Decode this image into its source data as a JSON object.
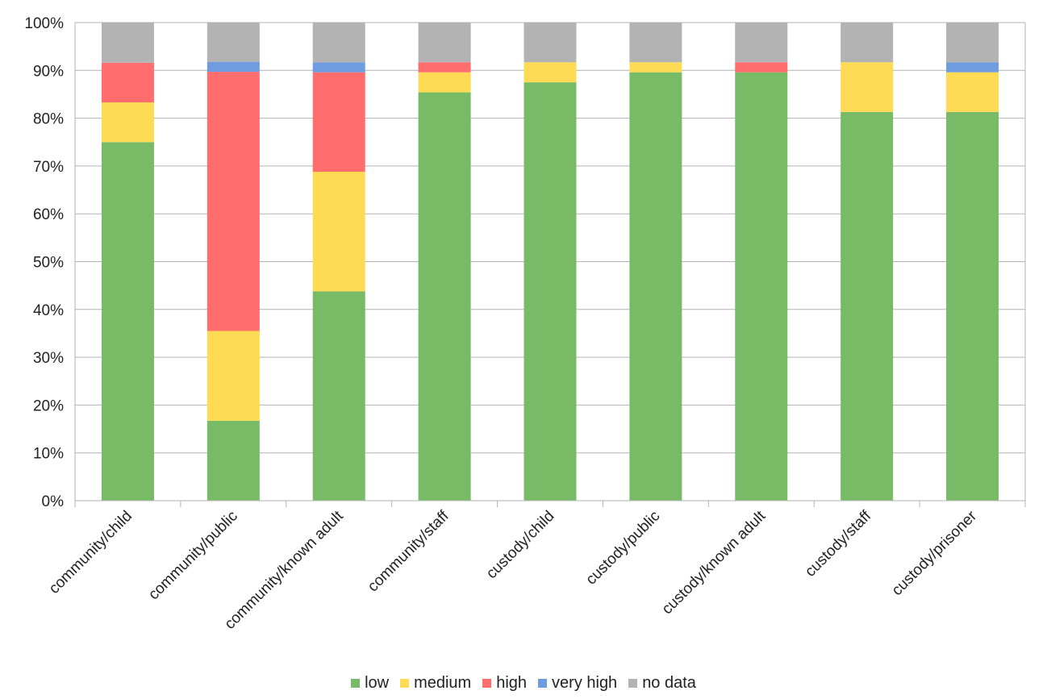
{
  "chart_data": {
    "type": "bar",
    "stacked": true,
    "categories": [
      "community/child",
      "community/public",
      "community/known adult",
      "community/staff",
      "custody/child",
      "custody/public",
      "custody/known adult",
      "custody/staff",
      "custody/prisoner"
    ],
    "series": [
      {
        "name": "low",
        "color": "#77bb66",
        "values": [
          75,
          16.7,
          43.8,
          85.4,
          87.5,
          89.6,
          89.6,
          81.3,
          81.3
        ]
      },
      {
        "name": "medium",
        "color": "#ffdb55",
        "values": [
          8.3,
          18.8,
          25,
          4.2,
          4.2,
          2.1,
          0,
          10.4,
          8.3
        ]
      },
      {
        "name": "high",
        "color": "#ff6e6c",
        "values": [
          8.3,
          54.2,
          20.8,
          2.1,
          0,
          0,
          2.1,
          0,
          0
        ]
      },
      {
        "name": "very high",
        "color": "#6f9be0",
        "values": [
          0,
          2.1,
          2.1,
          0,
          0,
          0,
          0,
          0,
          2.1
        ]
      },
      {
        "name": "no data",
        "color": "#b3b3b3",
        "values": [
          8.4,
          8.2,
          8.3,
          8.3,
          8.3,
          8.3,
          8.3,
          8.3,
          8.3
        ]
      }
    ],
    "yticks": [
      "0%",
      "10%",
      "20%",
      "30%",
      "40%",
      "50%",
      "60%",
      "70%",
      "80%",
      "90%",
      "100%"
    ],
    "ylim": [
      0,
      100
    ],
    "grid": true,
    "legend_position": "bottom",
    "title": "",
    "xlabel": "",
    "ylabel": ""
  }
}
